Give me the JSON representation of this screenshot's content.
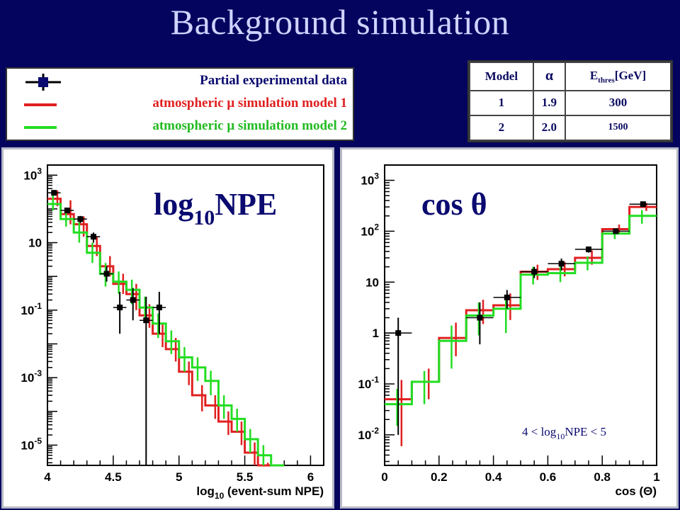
{
  "title": "Background simulation",
  "legend": {
    "items": [
      {
        "label": "Partial experimental data",
        "color": "#0a0a70",
        "kind": "data"
      },
      {
        "label": "atmospheric μ simulation model 1",
        "color": "#e02020",
        "kind": "line"
      },
      {
        "label": "atmospheric μ simulation model 2",
        "color": "#22dd22",
        "kind": "line"
      }
    ]
  },
  "model_table": {
    "headers": [
      "Model",
      "α",
      "E",
      "thres",
      "[GeV]"
    ],
    "rows": [
      [
        "1",
        "1.9",
        "300"
      ],
      [
        "2",
        "2.0",
        "1500"
      ]
    ]
  },
  "chart_data": [
    {
      "type": "line",
      "overlay_label": {
        "main": "log",
        "sub": "10",
        "rest": "NPE"
      },
      "xlabel": {
        "pre": "log",
        "sub": "10",
        "post": " (event-sum NPE)"
      },
      "ylabel": "",
      "xlim": [
        4,
        6.1
      ],
      "ylim_log10": [
        -5.6,
        3.3
      ],
      "log_y": true,
      "x_ticks": [
        "4",
        "4.5",
        "5",
        "5.5",
        "6"
      ],
      "y_ticks": [
        {
          "base": "10",
          "exp": "3",
          "pow": 3
        },
        {
          "base": "10",
          "exp": "",
          "pow": 1
        },
        {
          "base": "10",
          "exp": "-1",
          "pow": -1
        },
        {
          "base": "10",
          "exp": "-3",
          "pow": -3
        },
        {
          "base": "10",
          "exp": "-5",
          "pow": -5
        }
      ],
      "bin_edges": [
        4.0,
        4.1,
        4.2,
        4.3,
        4.4,
        4.5,
        4.6,
        4.7,
        4.8,
        4.9,
        5.0,
        5.1,
        5.2,
        5.3,
        5.4,
        5.5,
        5.6,
        5.7,
        5.8
      ],
      "series": [
        {
          "name": "atmospheric μ simulation model 1",
          "color": "#e02020",
          "values": [
            200,
            70,
            35,
            8,
            2,
            0.6,
            0.3,
            0.07,
            0.02,
            0.007,
            0.0015,
            0.0003,
            0.00015,
            5e-05,
            2.5e-05,
            6e-06,
            1.5e-06,
            6e-07
          ],
          "err_low": [
            120,
            35,
            15,
            4,
            1,
            0.3,
            0.1,
            0.03,
            0.008,
            0.003,
            0.0006,
            0.0001,
            6e-05,
            2e-05,
            1e-05,
            2.5e-06,
            6e-07,
            3e-07
          ],
          "err_high": [
            350,
            180,
            60,
            15,
            4,
            1.2,
            0.6,
            0.15,
            0.04,
            0.015,
            0.003,
            0.0006,
            0.0003,
            0.0001,
            5e-05,
            1.2e-05,
            3e-06,
            1.2e-06
          ]
        },
        {
          "name": "atmospheric μ simulation model 2",
          "color": "#22dd22",
          "values": [
            140,
            50,
            20,
            5,
            1.2,
            0.7,
            0.4,
            0.12,
            0.04,
            0.012,
            0.004,
            0.002,
            0.0008,
            0.00015,
            6e-05,
            1.5e-05,
            5e-06,
            1.2e-06
          ],
          "err_low": [
            90,
            30,
            10,
            2.5,
            0.5,
            0.3,
            0.15,
            0.05,
            0.015,
            0.005,
            0.0015,
            0.0008,
            0.0003,
            6e-05,
            2.5e-05,
            6e-06,
            2e-06,
            5e-07
          ],
          "err_high": [
            250,
            100,
            40,
            10,
            2.5,
            1.4,
            0.8,
            0.25,
            0.08,
            0.025,
            0.008,
            0.004,
            0.0016,
            0.0003,
            0.00012,
            3e-05,
            1e-05,
            2.5e-06
          ]
        },
        {
          "name": "Partial experimental data",
          "color": "#000000",
          "points": [
            {
              "x": 4.05,
              "y": 300,
              "lo": 250,
              "hi": 350
            },
            {
              "x": 4.15,
              "y": 90,
              "lo": 75,
              "hi": 105
            },
            {
              "x": 4.25,
              "y": 50,
              "lo": 38,
              "hi": 62
            },
            {
              "x": 4.35,
              "y": 15,
              "lo": 10,
              "hi": 20
            },
            {
              "x": 4.45,
              "y": 1.2,
              "lo": 0.7,
              "hi": 2.0
            },
            {
              "x": 4.55,
              "y": 0.12,
              "lo": 0.02,
              "hi": 0.35
            },
            {
              "x": 4.65,
              "y": 0.2,
              "lo": 0.05,
              "hi": 0.45
            },
            {
              "x": 4.75,
              "y": 0.05,
              "lo": 1e-06,
              "hi": 0.25
            },
            {
              "x": 4.85,
              "y": 0.12,
              "lo": 0.02,
              "hi": 0.35
            }
          ]
        }
      ]
    },
    {
      "type": "line",
      "overlay_label": {
        "main": "cos θ"
      },
      "annotation": {
        "pre": "4 < log",
        "sub": "10",
        "post": "NPE < 5"
      },
      "xlabel": {
        "pre": "cos (Θ)",
        "sub": "",
        "post": ""
      },
      "ylabel": "",
      "xlim": [
        0,
        1
      ],
      "ylim_log10": [
        -2.6,
        3.3
      ],
      "log_y": true,
      "x_ticks": [
        "0",
        "0.2",
        "0.4",
        "0.6",
        "0.8",
        "1"
      ],
      "y_ticks": [
        {
          "base": "10",
          "exp": "3",
          "pow": 3
        },
        {
          "base": "10",
          "exp": "2",
          "pow": 2
        },
        {
          "base": "10",
          "exp": "",
          "pow": 1
        },
        {
          "base": "1",
          "exp": "",
          "pow": 0
        },
        {
          "base": "10",
          "exp": "-1",
          "pow": -1
        },
        {
          "base": "10",
          "exp": "-2",
          "pow": -2
        }
      ],
      "bin_edges": [
        0.0,
        0.1,
        0.2,
        0.3,
        0.4,
        0.5,
        0.6,
        0.7,
        0.8,
        0.9,
        1.0
      ],
      "series": [
        {
          "name": "atmospheric μ simulation model 1",
          "color": "#e02020",
          "values": [
            0.05,
            0.11,
            0.8,
            2.8,
            3.5,
            16,
            18,
            30,
            110,
            300
          ],
          "err_low": [
            0.006,
            0.05,
            0.35,
            1.5,
            1.8,
            11,
            13,
            22,
            90,
            250
          ],
          "err_high": [
            0.12,
            0.2,
            1.6,
            4.5,
            6,
            22,
            25,
            42,
            135,
            360
          ]
        },
        {
          "name": "atmospheric μ simulation model 2",
          "color": "#22dd22",
          "values": [
            0.04,
            0.11,
            0.7,
            2.2,
            3.0,
            14,
            15,
            24,
            90,
            200
          ],
          "err_low": [
            0.015,
            0.04,
            0.2,
            0.9,
            1.0,
            9,
            10,
            17,
            70,
            140
          ],
          "err_high": [
            0.08,
            0.18,
            1.4,
            4.0,
            5.5,
            20,
            22,
            32,
            112,
            260
          ]
        },
        {
          "name": "Partial experimental data",
          "color": "#000000",
          "points": [
            {
              "x": 0.05,
              "y": 1.0,
              "lo": 0.01,
              "hi": 2.0
            },
            {
              "x": 0.35,
              "y": 2.0,
              "lo": 0.6,
              "hi": 4.0
            },
            {
              "x": 0.45,
              "y": 5.0,
              "lo": 3.0,
              "hi": 7.0
            },
            {
              "x": 0.55,
              "y": 16,
              "lo": 12,
              "hi": 20
            },
            {
              "x": 0.65,
              "y": 23,
              "lo": 17,
              "hi": 29
            },
            {
              "x": 0.75,
              "y": 44,
              "lo": 38,
              "hi": 50
            },
            {
              "x": 0.85,
              "y": 100,
              "lo": 90,
              "hi": 110
            },
            {
              "x": 0.95,
              "y": 340,
              "lo": 310,
              "hi": 370
            }
          ]
        }
      ]
    }
  ]
}
